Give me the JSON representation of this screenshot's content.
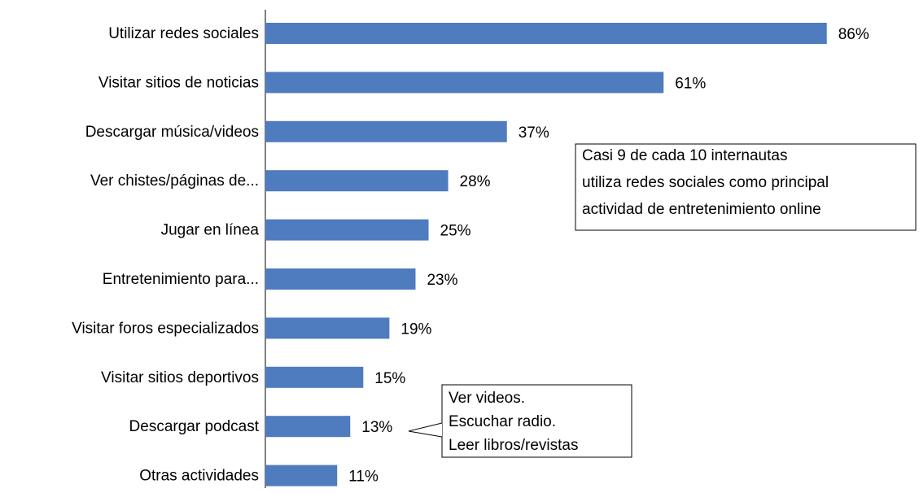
{
  "chart_data": {
    "type": "barh",
    "categories": [
      "Utilizar redes sociales",
      "Visitar sitios de noticias",
      "Descargar música/videos",
      "Ver chistes/páginas de...",
      "Jugar en línea",
      "Entretenimiento para...",
      "Visitar foros especializados",
      "Visitar sitios deportivos",
      "Descargar podcast",
      "Otras actividades"
    ],
    "values": [
      86,
      61,
      37,
      28,
      25,
      23,
      19,
      15,
      13,
      11
    ],
    "value_labels": [
      "86%",
      "61%",
      "37%",
      "28%",
      "25%",
      "23%",
      "19%",
      "15%",
      "13%",
      "11%"
    ],
    "color": "#4f7bbf",
    "xlim": [
      0,
      100
    ],
    "annotations": [
      {
        "lines": [
          "Casi 9 de cada 10 internautas",
          "utiliza redes sociales como principal",
          "actividad de entretenimiento online"
        ]
      },
      {
        "lines": [
          "Ver videos.",
          "Escuchar radio.",
          "Leer libros/revistas"
        ]
      }
    ]
  }
}
